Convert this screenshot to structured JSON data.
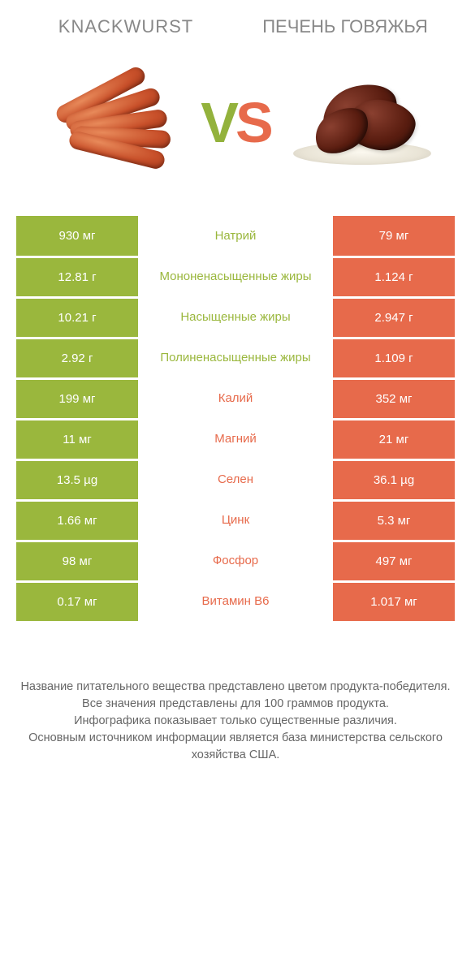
{
  "colors": {
    "green": "#9ab73d",
    "orange": "#e76a4b",
    "title_grey": "#888888",
    "footer_grey": "#666666",
    "background": "#ffffff"
  },
  "header": {
    "left_title": "KNACKWURST",
    "right_title": "ПЕЧЕНЬ ГОВЯЖЬЯ",
    "vs_v": "V",
    "vs_s": "S"
  },
  "images": {
    "left_alt": "knackwurst-sausages",
    "right_alt": "beef-liver"
  },
  "rows": [
    {
      "left": "930 мг",
      "label": "Натрий",
      "right": "79 мг",
      "winner": "left"
    },
    {
      "left": "12.81 г",
      "label": "Мононенасыщенные жиры",
      "right": "1.124 г",
      "winner": "left"
    },
    {
      "left": "10.21 г",
      "label": "Насыщенные жиры",
      "right": "2.947 г",
      "winner": "left"
    },
    {
      "left": "2.92 г",
      "label": "Полиненасыщенные жиры",
      "right": "1.109 г",
      "winner": "left"
    },
    {
      "left": "199 мг",
      "label": "Калий",
      "right": "352 мг",
      "winner": "right"
    },
    {
      "left": "11 мг",
      "label": "Магний",
      "right": "21 мг",
      "winner": "right"
    },
    {
      "left": "13.5 µg",
      "label": "Селен",
      "right": "36.1 µg",
      "winner": "right"
    },
    {
      "left": "1.66 мг",
      "label": "Цинк",
      "right": "5.3 мг",
      "winner": "right"
    },
    {
      "left": "98 мг",
      "label": "Фосфор",
      "right": "497 мг",
      "winner": "right"
    },
    {
      "left": "0.17 мг",
      "label": "Витамин B6",
      "right": "1.017 мг",
      "winner": "right"
    }
  ],
  "footer": {
    "line1": "Название питательного вещества представлено цветом продукта-победителя.",
    "line2": "Все значения представлены для 100 граммов продукта.",
    "line3": "Инфографика показывает только существенные различия.",
    "line4": "Основным источником информации является база министерства сельского хозяйства США."
  }
}
